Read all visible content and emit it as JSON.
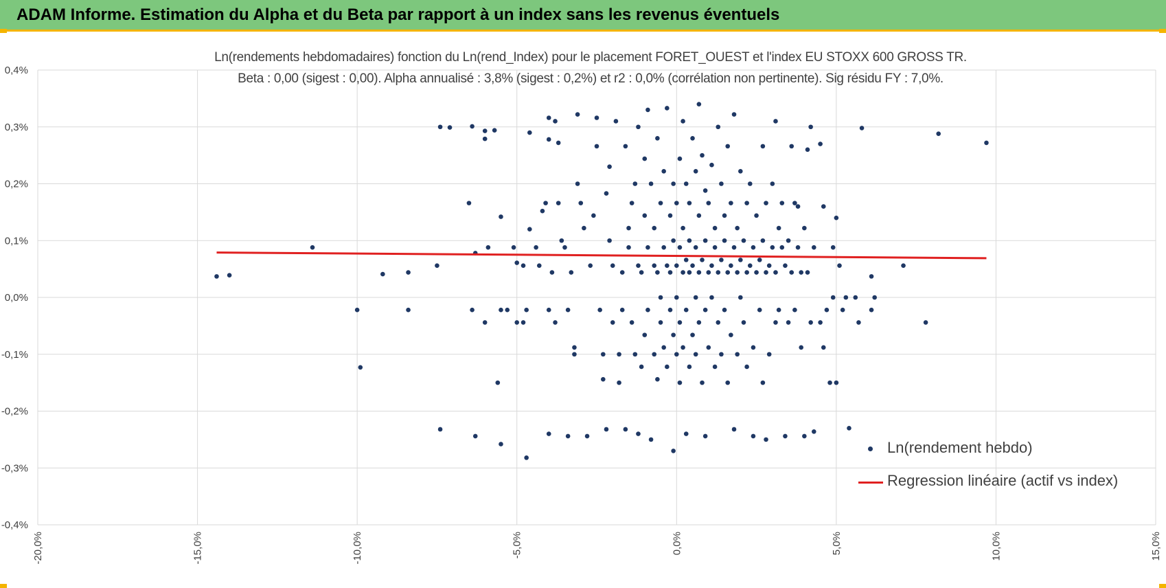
{
  "header": {
    "title": "ADAM Informe. Estimation du Alpha et du Beta par rapport à un index sans les revenus éventuels"
  },
  "colors": {
    "header_bg": "#7dc77d",
    "accent_border": "#f4b400",
    "scatter_points": "#1f3864",
    "regression_line": "#e02020",
    "grid": "#d9d9d9",
    "text": "#404040"
  },
  "chart_data": {
    "type": "scatter",
    "title_line1": "Ln(rendements hebdomadaires) fonction du Ln(rend_Index) pour le placement FORET_OUEST et l'index EU STOXX 600 GROSS TR.",
    "title_line2": "Beta : 0,00 (sigest : 0,00).  Alpha annualisé : 3,8% (sigest : 0,2%) et r2 : 0,0% (corrélation non pertinente). Sig résidu FY : 7,0%.",
    "xlim": [
      -0.2,
      0.15
    ],
    "ylim": [
      -0.004,
      0.004
    ],
    "x_ticks": [
      -0.2,
      -0.15,
      -0.1,
      -0.05,
      0.0,
      0.05,
      0.1,
      0.15
    ],
    "x_tick_labels": [
      "-20,0%",
      "-15,0%",
      "-10,0%",
      "-5,0%",
      "0,0%",
      "5,0%",
      "10,0%",
      "15,0%"
    ],
    "y_ticks": [
      0.004,
      0.003,
      0.002,
      0.001,
      0.0,
      -0.001,
      -0.002,
      -0.003,
      -0.004
    ],
    "y_tick_labels": [
      "0,4%",
      "0,3%",
      "0,2%",
      "0,1%",
      "0,0%",
      "-0,1%",
      "-0,2%",
      "-0,3%",
      "-0,4%"
    ],
    "grid": true,
    "legend_placement": "bottom-right",
    "series": [
      {
        "name": "Ln(rendement hebdo)",
        "kind": "scatter",
        "points": [
          [
            -0.144,
            0.00037
          ],
          [
            -0.14,
            0.00039
          ],
          [
            -0.114,
            0.00088
          ],
          [
            -0.1,
            -0.00022
          ],
          [
            -0.099,
            -0.00123
          ],
          [
            -0.092,
            0.00041
          ],
          [
            -0.084,
            0.00044
          ],
          [
            -0.084,
            -0.00022
          ],
          [
            -0.075,
            0.00056
          ],
          [
            -0.074,
            0.003
          ],
          [
            -0.074,
            -0.00232
          ],
          [
            -0.071,
            0.00299
          ],
          [
            -0.065,
            0.00166
          ],
          [
            -0.064,
            0.00301
          ],
          [
            -0.064,
            -0.00022
          ],
          [
            -0.063,
            0.00078
          ],
          [
            -0.063,
            -0.00244
          ],
          [
            -0.06,
            0.00293
          ],
          [
            -0.06,
            0.00279
          ],
          [
            -0.06,
            -0.00044
          ],
          [
            -0.059,
            0.00088
          ],
          [
            -0.057,
            0.00294
          ],
          [
            -0.056,
            -0.0015
          ],
          [
            -0.055,
            -0.00022
          ],
          [
            -0.055,
            0.00142
          ],
          [
            -0.055,
            -0.00258
          ],
          [
            -0.053,
            -0.00022
          ],
          [
            -0.051,
            0.00088
          ],
          [
            -0.05,
            -0.00044
          ],
          [
            -0.05,
            0.00061
          ],
          [
            -0.048,
            -0.00044
          ],
          [
            -0.048,
            0.00056
          ],
          [
            -0.047,
            -0.00022
          ],
          [
            -0.047,
            -0.00282
          ],
          [
            -0.046,
            0.0012
          ],
          [
            -0.046,
            0.0029
          ],
          [
            -0.044,
            0.00088
          ],
          [
            -0.043,
            0.00056
          ],
          [
            -0.042,
            0.00152
          ],
          [
            -0.041,
            0.00166
          ],
          [
            -0.04,
            0.00316
          ],
          [
            -0.04,
            0.00278
          ],
          [
            -0.04,
            -0.00022
          ],
          [
            -0.04,
            -0.0024
          ],
          [
            -0.039,
            0.00044
          ],
          [
            -0.038,
            -0.00044
          ],
          [
            -0.038,
            0.0031
          ],
          [
            -0.037,
            0.00272
          ],
          [
            -0.037,
            0.00166
          ],
          [
            -0.036,
            0.001
          ],
          [
            -0.035,
            0.00088
          ],
          [
            -0.034,
            -0.00022
          ],
          [
            -0.034,
            -0.00244
          ],
          [
            -0.033,
            0.00044
          ],
          [
            -0.032,
            -0.00088
          ],
          [
            -0.032,
            -0.001
          ],
          [
            -0.031,
            0.00322
          ],
          [
            -0.031,
            0.002
          ],
          [
            -0.03,
            0.00166
          ],
          [
            -0.029,
            0.00122
          ],
          [
            -0.028,
            -0.00244
          ],
          [
            -0.027,
            0.00056
          ],
          [
            -0.026,
            0.00144
          ],
          [
            -0.025,
            0.00316
          ],
          [
            -0.025,
            0.00266
          ],
          [
            -0.024,
            -0.00022
          ],
          [
            -0.023,
            -0.001
          ],
          [
            -0.023,
            -0.00144
          ],
          [
            -0.022,
            -0.00232
          ],
          [
            -0.022,
            0.00183
          ],
          [
            -0.021,
            0.001
          ],
          [
            -0.021,
            0.0023
          ],
          [
            -0.02,
            0.00056
          ],
          [
            -0.02,
            -0.00044
          ],
          [
            -0.019,
            0.0031
          ],
          [
            -0.018,
            -0.001
          ],
          [
            -0.018,
            -0.0015
          ],
          [
            -0.017,
            0.00044
          ],
          [
            -0.017,
            -0.00022
          ],
          [
            -0.016,
            0.00266
          ],
          [
            -0.016,
            -0.00232
          ],
          [
            -0.015,
            0.00088
          ],
          [
            -0.015,
            0.00122
          ],
          [
            -0.014,
            0.00166
          ],
          [
            -0.014,
            -0.00044
          ],
          [
            -0.013,
            0.002
          ],
          [
            -0.013,
            -0.001
          ],
          [
            -0.012,
            0.00056
          ],
          [
            -0.012,
            0.003
          ],
          [
            -0.012,
            -0.0024
          ],
          [
            -0.011,
            0.00044
          ],
          [
            -0.011,
            -0.00122
          ],
          [
            -0.01,
            0.00144
          ],
          [
            -0.01,
            0.00244
          ],
          [
            -0.01,
            -0.00066
          ],
          [
            -0.009,
            0.00088
          ],
          [
            -0.009,
            0.0033
          ],
          [
            -0.009,
            -0.00022
          ],
          [
            -0.008,
            0.002
          ],
          [
            -0.008,
            -0.0025
          ],
          [
            -0.007,
            0.00056
          ],
          [
            -0.007,
            0.00122
          ],
          [
            -0.007,
            -0.001
          ],
          [
            -0.006,
            0.00044
          ],
          [
            -0.006,
            0.0028
          ],
          [
            -0.006,
            -0.00144
          ],
          [
            -0.005,
            0.00166
          ],
          [
            -0.005,
            0.0
          ],
          [
            -0.005,
            -0.00044
          ],
          [
            -0.004,
            0.00088
          ],
          [
            -0.004,
            0.00222
          ],
          [
            -0.004,
            -0.00088
          ],
          [
            -0.003,
            0.00056
          ],
          [
            -0.003,
            0.00333
          ],
          [
            -0.003,
            -0.00122
          ],
          [
            -0.002,
            0.00144
          ],
          [
            -0.002,
            0.00044
          ],
          [
            -0.002,
            -0.00022
          ],
          [
            -0.001,
            0.001
          ],
          [
            -0.001,
            0.002
          ],
          [
            -0.001,
            -0.00066
          ],
          [
            -0.001,
            -0.0027
          ],
          [
            0.0,
            0.00056
          ],
          [
            0.0,
            0.00166
          ],
          [
            0.0,
            0.0
          ],
          [
            0.0,
            -0.001
          ],
          [
            0.001,
            0.00088
          ],
          [
            0.001,
            0.00244
          ],
          [
            0.001,
            -0.00044
          ],
          [
            0.001,
            -0.0015
          ],
          [
            0.002,
            0.00044
          ],
          [
            0.002,
            0.00122
          ],
          [
            0.002,
            0.0031
          ],
          [
            0.002,
            -0.00088
          ],
          [
            0.003,
            0.00066
          ],
          [
            0.003,
            0.002
          ],
          [
            0.003,
            -0.00022
          ],
          [
            0.003,
            -0.0024
          ],
          [
            0.004,
            0.001
          ],
          [
            0.004,
            0.00166
          ],
          [
            0.004,
            0.00044
          ],
          [
            0.004,
            -0.00122
          ],
          [
            0.005,
            0.00056
          ],
          [
            0.005,
            0.0028
          ],
          [
            0.005,
            -0.00066
          ],
          [
            0.006,
            0.00088
          ],
          [
            0.006,
            0.00222
          ],
          [
            0.006,
            0.0
          ],
          [
            0.006,
            -0.001
          ],
          [
            0.007,
            0.00044
          ],
          [
            0.007,
            0.00144
          ],
          [
            0.007,
            0.0034
          ],
          [
            0.007,
            -0.00044
          ],
          [
            0.008,
            0.00066
          ],
          [
            0.008,
            0.0025
          ],
          [
            0.008,
            -0.0015
          ],
          [
            0.009,
            0.001
          ],
          [
            0.009,
            0.00188
          ],
          [
            0.009,
            -0.00022
          ],
          [
            0.009,
            -0.00244
          ],
          [
            0.01,
            0.00044
          ],
          [
            0.01,
            0.00166
          ],
          [
            0.01,
            -0.00088
          ],
          [
            0.011,
            0.00056
          ],
          [
            0.011,
            0.00233
          ],
          [
            0.011,
            0.0
          ],
          [
            0.012,
            0.00088
          ],
          [
            0.012,
            0.00122
          ],
          [
            0.012,
            -0.00122
          ],
          [
            0.013,
            0.00044
          ],
          [
            0.013,
            0.003
          ],
          [
            0.013,
            -0.00044
          ],
          [
            0.014,
            0.00066
          ],
          [
            0.014,
            0.002
          ],
          [
            0.014,
            -0.001
          ],
          [
            0.015,
            0.001
          ],
          [
            0.015,
            0.00144
          ],
          [
            0.015,
            -0.00022
          ],
          [
            0.016,
            0.00044
          ],
          [
            0.016,
            0.00266
          ],
          [
            0.016,
            -0.0015
          ],
          [
            0.017,
            0.00056
          ],
          [
            0.017,
            0.00166
          ],
          [
            0.017,
            -0.00066
          ],
          [
            0.018,
            0.00088
          ],
          [
            0.018,
            0.00322
          ],
          [
            0.018,
            -0.00232
          ],
          [
            0.019,
            0.00044
          ],
          [
            0.019,
            0.00122
          ],
          [
            0.019,
            -0.001
          ],
          [
            0.02,
            0.00066
          ],
          [
            0.02,
            0.00222
          ],
          [
            0.02,
            0.0
          ],
          [
            0.021,
            0.001
          ],
          [
            0.021,
            -0.00044
          ],
          [
            0.022,
            0.00044
          ],
          [
            0.022,
            0.00166
          ],
          [
            0.022,
            -0.00122
          ],
          [
            0.023,
            0.00056
          ],
          [
            0.023,
            0.002
          ],
          [
            0.024,
            0.00088
          ],
          [
            0.024,
            -0.00088
          ],
          [
            0.024,
            -0.00244
          ],
          [
            0.025,
            0.00044
          ],
          [
            0.025,
            0.00144
          ],
          [
            0.026,
            0.00066
          ],
          [
            0.026,
            -0.00022
          ],
          [
            0.027,
            0.001
          ],
          [
            0.027,
            0.00266
          ],
          [
            0.027,
            -0.0015
          ],
          [
            0.028,
            0.00044
          ],
          [
            0.028,
            0.00166
          ],
          [
            0.028,
            -0.0025
          ],
          [
            0.029,
            0.00056
          ],
          [
            0.029,
            -0.001
          ],
          [
            0.03,
            0.00088
          ],
          [
            0.03,
            0.002
          ],
          [
            0.031,
            0.00044
          ],
          [
            0.031,
            0.0031
          ],
          [
            0.031,
            -0.00044
          ],
          [
            0.032,
            0.00122
          ],
          [
            0.032,
            -0.00022
          ],
          [
            0.033,
            0.00088
          ],
          [
            0.033,
            0.00166
          ],
          [
            0.034,
            0.00056
          ],
          [
            0.034,
            -0.00244
          ],
          [
            0.035,
            0.001
          ],
          [
            0.035,
            -0.00044
          ],
          [
            0.036,
            0.00044
          ],
          [
            0.036,
            0.00266
          ],
          [
            0.037,
            0.00166
          ],
          [
            0.037,
            -0.00022
          ],
          [
            0.038,
            0.00088
          ],
          [
            0.038,
            0.0016
          ],
          [
            0.039,
            0.00044
          ],
          [
            0.039,
            -0.00088
          ],
          [
            0.04,
            0.00122
          ],
          [
            0.04,
            -0.00244
          ],
          [
            0.041,
            0.0026
          ],
          [
            0.041,
            0.00044
          ],
          [
            0.042,
            -0.00044
          ],
          [
            0.042,
            0.003
          ],
          [
            0.043,
            0.00088
          ],
          [
            0.043,
            -0.00236
          ],
          [
            0.045,
            0.0027
          ],
          [
            0.045,
            -0.00044
          ],
          [
            0.046,
            0.0016
          ],
          [
            0.046,
            -0.00088
          ],
          [
            0.047,
            -0.00022
          ],
          [
            0.048,
            -0.0015
          ],
          [
            0.049,
            0.00088
          ],
          [
            0.049,
            0.0
          ],
          [
            0.05,
            0.0014
          ],
          [
            0.05,
            -0.0015
          ],
          [
            0.051,
            0.00056
          ],
          [
            0.052,
            -0.00022
          ],
          [
            0.053,
            0.0
          ],
          [
            0.054,
            -0.0023
          ],
          [
            0.056,
            0.0
          ],
          [
            0.057,
            -0.00044
          ],
          [
            0.058,
            0.00298
          ],
          [
            0.061,
            0.00037
          ],
          [
            0.061,
            -0.00022
          ],
          [
            0.062,
            0.0
          ],
          [
            0.071,
            0.00056
          ],
          [
            0.078,
            -0.00044
          ],
          [
            0.082,
            0.00288
          ],
          [
            0.097,
            0.00272
          ]
        ]
      },
      {
        "name": "Regression linéaire (actif vs index)",
        "kind": "line",
        "points": [
          [
            -0.144,
            0.00079
          ],
          [
            0.097,
            0.00069
          ]
        ]
      }
    ]
  }
}
